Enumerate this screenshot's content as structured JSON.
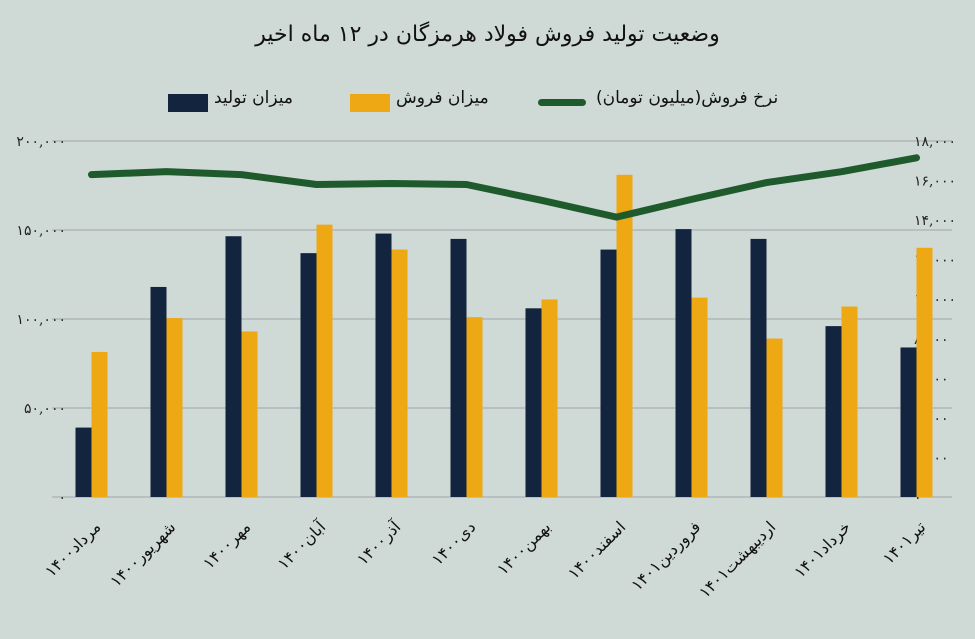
{
  "chart_data": {
    "type": "bar+line",
    "title": "وضعیت تولید فروش فولاد هرمزگان در ۱۲ ماه اخیر",
    "categories": [
      "مرداد۱۴۰۰",
      "شهریور۱۴۰۰",
      "مهر۱۴۰۰",
      "آبان۱۴۰۰",
      "آذر۱۴۰۰",
      "دی۱۴۰۰",
      "بهمن۱۴۰۰",
      "اسفند۱۴۰۰",
      "فروردین۱۴۰۱",
      "اردیبهشت۱۴۰۱",
      "خرداد۱۴۰۱",
      "تیر۱۴۰۱"
    ],
    "series": [
      {
        "name": "میزان تولید",
        "type": "bar",
        "axis": "left",
        "color": "#13243f",
        "values": [
          39000,
          118000,
          146500,
          137000,
          148000,
          145000,
          106000,
          139000,
          150500,
          145000,
          96000,
          84000
        ]
      },
      {
        "name": "میزان فروش",
        "type": "bar",
        "axis": "left",
        "color": "#eda814",
        "values": [
          81500,
          100500,
          93000,
          153000,
          139000,
          101000,
          111000,
          181000,
          112000,
          89000,
          107000,
          140000
        ]
      },
      {
        "name": "نرخ فروش(میلیون تومان)",
        "type": "line",
        "axis": "right",
        "color": "#1e5a2c",
        "values": [
          16300,
          16450,
          16300,
          15800,
          15850,
          15800,
          15000,
          14150,
          15050,
          15900,
          16450,
          17150
        ]
      }
    ],
    "left_axis": {
      "range": [
        0,
        200000
      ],
      "tick_labels": [
        "۰",
        "۵۰,۰۰۰",
        "۱۰۰,۰۰۰",
        "۱۵۰,۰۰۰",
        "۲۰۰,۰۰۰"
      ],
      "ticks": [
        0,
        50000,
        100000,
        150000,
        200000
      ]
    },
    "right_axis": {
      "range": [
        0,
        18000
      ],
      "tick_labels": [
        "۰",
        "۲,۰۰۰",
        "۴,۰۰۰",
        "۶,۰۰۰",
        "۸,۰۰۰",
        "۱۰,۰۰۰",
        "۱۲,۰۰۰",
        "۱۴,۰۰۰",
        "۱۶,۰۰۰",
        "۱۸,۰۰۰"
      ]
    },
    "grid": true,
    "legend_position": "top",
    "background": "#cfd9d6"
  }
}
